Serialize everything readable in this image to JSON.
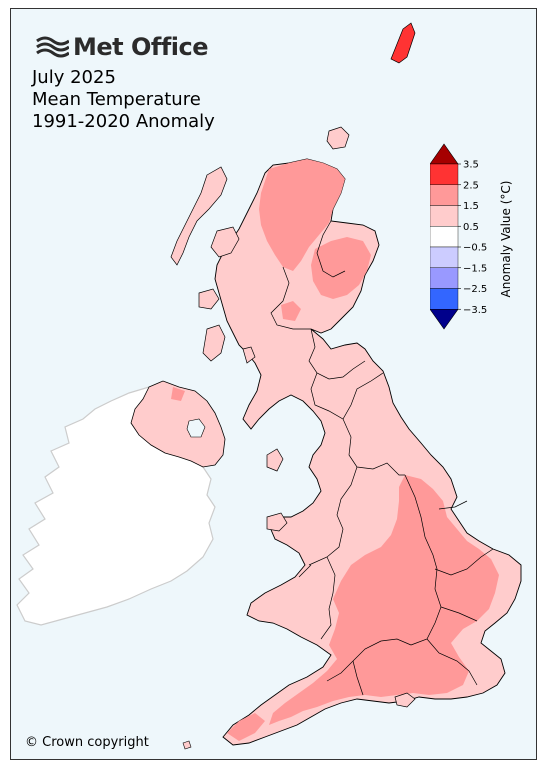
{
  "logo": {
    "text": "Met Office"
  },
  "title": {
    "line1": "July 2025",
    "line2": "Mean Temperature",
    "line3": "1991-2020 Anomaly"
  },
  "legend": {
    "label": "Anomaly Value (°C)",
    "ticks": [
      "3.5",
      "2.5",
      "1.5",
      "0.5",
      "−0.5",
      "−1.5",
      "−2.5",
      "−3.5"
    ],
    "colors": {
      "above_3_5": "#a50000",
      "2_5_to_3_5": "#ff3333",
      "1_5_to_2_5": "#ff9999",
      "0_5_to_1_5": "#ffcccc",
      "neutral": "#ffffff",
      "m1_5_to_m0_5": "#ccccff",
      "m2_5_to_m1_5": "#9999ff",
      "m3_5_to_m2_5": "#3366ff",
      "below_m3_5": "#00008b"
    }
  },
  "map": {
    "background": "#eef7fb",
    "ireland_fill": "#ffffff",
    "ireland_outline": "#cccccc",
    "region_outline": "#000000"
  },
  "footer": {
    "copyright": "© Crown copyright"
  }
}
